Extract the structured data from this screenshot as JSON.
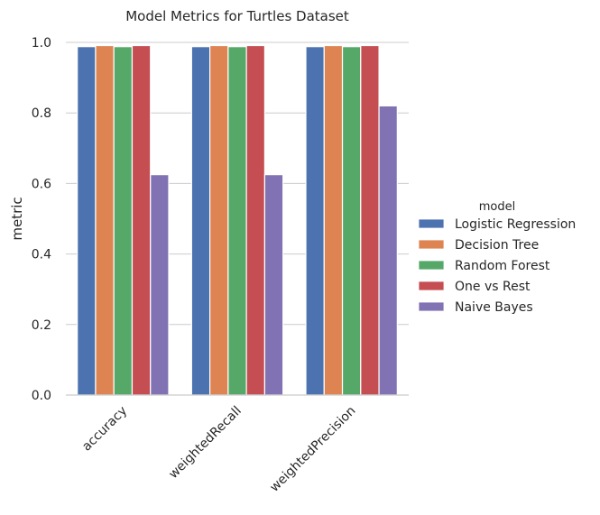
{
  "chart_data": {
    "type": "bar",
    "title": "Model Metrics for Turtles Dataset",
    "xlabel": "",
    "ylabel": "metric",
    "ylim": [
      0,
      1.0
    ],
    "yticks": [
      "0.0",
      "0.2",
      "0.4",
      "0.6",
      "0.8",
      "1.0"
    ],
    "grid": "horizontal",
    "legend_title": "model",
    "legend_position": "right",
    "categories": [
      "accuracy",
      "weightedRecall",
      "weightedPrecision"
    ],
    "series": [
      {
        "name": "Logistic Regression",
        "color": "#4c72b0",
        "values": [
          0.988,
          0.988,
          0.988
        ]
      },
      {
        "name": "Decision Tree",
        "color": "#dd8452",
        "values": [
          0.991,
          0.991,
          0.991
        ]
      },
      {
        "name": "Random Forest",
        "color": "#55a868",
        "values": [
          0.988,
          0.988,
          0.988
        ]
      },
      {
        "name": "One vs Rest",
        "color": "#c44e52",
        "values": [
          0.991,
          0.991,
          0.991
        ]
      },
      {
        "name": "Naive Bayes",
        "color": "#8172b3",
        "values": [
          0.625,
          0.625,
          0.82
        ]
      }
    ]
  }
}
